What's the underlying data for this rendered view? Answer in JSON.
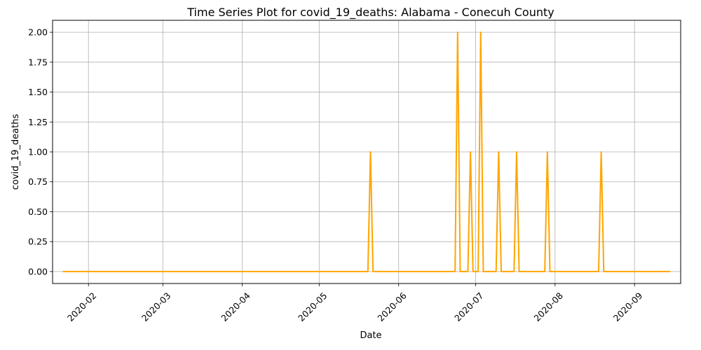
{
  "chart_data": {
    "type": "line",
    "title": "Time Series Plot for covid_19_deaths: Alabama - Conecuh County",
    "xlabel": "Date",
    "ylabel": "covid_19_deaths",
    "x_tick_labels": [
      "2020-02",
      "2020-03",
      "2020-04",
      "2020-05",
      "2020-06",
      "2020-07",
      "2020-08",
      "2020-09"
    ],
    "y_tick_labels": [
      "0.00",
      "0.25",
      "0.50",
      "0.75",
      "1.00",
      "1.25",
      "1.50",
      "1.75",
      "2.00"
    ],
    "xlim": [
      "2020-01-18",
      "2020-09-19"
    ],
    "ylim": [
      -0.1,
      2.1
    ],
    "grid": true,
    "line_color": "#ffa500",
    "series": [
      {
        "x": [
          "2020-01-22",
          "2020-05-20",
          "2020-05-21",
          "2020-05-22",
          "2020-06-23",
          "2020-06-24",
          "2020-06-25",
          "2020-06-28",
          "2020-06-29",
          "2020-06-30",
          "2020-07-02",
          "2020-07-03",
          "2020-07-04",
          "2020-07-09",
          "2020-07-10",
          "2020-07-11",
          "2020-07-16",
          "2020-07-17",
          "2020-07-18",
          "2020-07-28",
          "2020-07-29",
          "2020-07-30",
          "2020-08-18",
          "2020-08-19",
          "2020-08-20",
          "2020-09-15"
        ],
        "values": [
          0,
          0,
          1,
          0,
          0,
          2,
          0,
          0,
          1,
          0,
          0,
          2,
          0,
          0,
          1,
          0,
          0,
          1,
          0,
          0,
          1,
          0,
          0,
          1,
          0,
          0
        ]
      }
    ]
  }
}
